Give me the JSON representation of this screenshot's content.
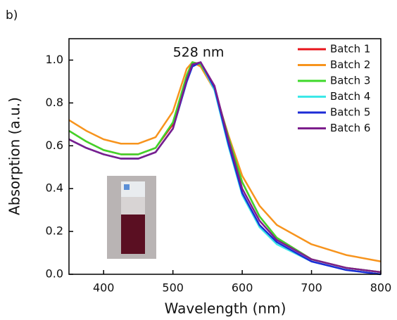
{
  "chart_data": {
    "type": "line",
    "panel_label": "b)",
    "annotation": "528 nm",
    "xlabel": "Wavelength (nm)",
    "ylabel": "Absorption (a.u.)",
    "x": [
      350,
      375,
      400,
      425,
      450,
      475,
      500,
      520,
      528,
      540,
      560,
      580,
      600,
      625,
      650,
      700,
      750,
      800
    ],
    "series": [
      {
        "name": "Batch 1",
        "color": "#e8141b",
        "values": [
          0.67,
          0.62,
          0.58,
          0.56,
          0.56,
          0.59,
          0.7,
          0.92,
          0.99,
          0.98,
          0.87,
          0.64,
          0.43,
          0.27,
          0.17,
          0.07,
          0.03,
          0.01
        ]
      },
      {
        "name": "Batch 2",
        "color": "#f7941d",
        "values": [
          0.72,
          0.67,
          0.63,
          0.61,
          0.61,
          0.64,
          0.76,
          0.96,
          0.99,
          0.97,
          0.86,
          0.65,
          0.46,
          0.32,
          0.23,
          0.14,
          0.09,
          0.06
        ]
      },
      {
        "name": "Batch 3",
        "color": "#3ed82a",
        "values": [
          0.67,
          0.62,
          0.58,
          0.56,
          0.56,
          0.59,
          0.71,
          0.93,
          0.99,
          0.98,
          0.87,
          0.64,
          0.43,
          0.27,
          0.17,
          0.07,
          0.03,
          0.01
        ]
      },
      {
        "name": "Batch 4",
        "color": "#3ce8e8",
        "values": [
          0.63,
          0.59,
          0.56,
          0.54,
          0.54,
          0.57,
          0.68,
          0.9,
          0.97,
          0.99,
          0.86,
          0.6,
          0.37,
          0.22,
          0.14,
          0.06,
          0.02,
          0.0
        ]
      },
      {
        "name": "Batch 5",
        "color": "#1c2bd6",
        "values": [
          0.63,
          0.59,
          0.56,
          0.54,
          0.54,
          0.57,
          0.68,
          0.9,
          0.97,
          0.99,
          0.87,
          0.61,
          0.38,
          0.23,
          0.15,
          0.06,
          0.02,
          0.0
        ]
      },
      {
        "name": "Batch 6",
        "color": "#7d1e8c",
        "values": [
          0.63,
          0.59,
          0.56,
          0.54,
          0.54,
          0.57,
          0.68,
          0.91,
          0.98,
          0.99,
          0.88,
          0.63,
          0.4,
          0.25,
          0.16,
          0.07,
          0.03,
          0.01
        ]
      }
    ],
    "xlim": [
      350,
      800
    ],
    "xticks": [
      400,
      500,
      600,
      700,
      800
    ],
    "ylim": [
      0,
      1.1
    ],
    "yticks": [
      {
        "value": 0,
        "label": "0.0"
      },
      0.2,
      0.4,
      0.6,
      0.8,
      {
        "value": 1,
        "label": "1.0"
      }
    ],
    "grid": false,
    "legend": "top-right"
  }
}
